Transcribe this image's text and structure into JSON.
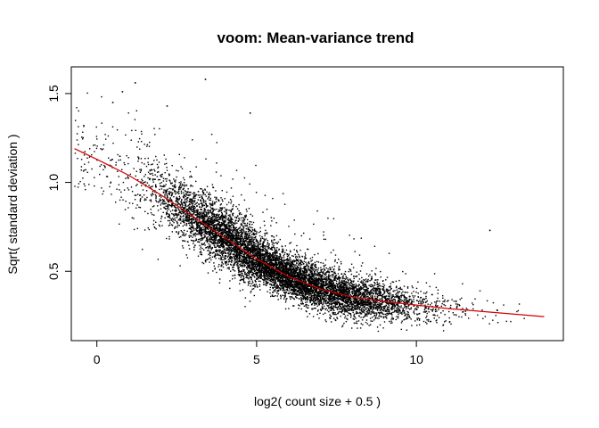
{
  "chart_data": {
    "type": "scatter",
    "title": "voom: Mean-variance trend",
    "xlabel": "log2( count size + 0.5 )",
    "ylabel": "Sqrt( standard deviation )",
    "xlim": [
      -0.8,
      14.6
    ],
    "ylim": [
      0.11,
      1.65
    ],
    "xticks": [
      0,
      5,
      10
    ],
    "xtick_labels": [
      "0",
      "5",
      "10"
    ],
    "yticks": [
      0.5,
      1.0,
      1.5
    ],
    "ytick_labels": [
      "0.5",
      "1.0",
      "1.5"
    ],
    "grid": false,
    "legend": "none",
    "point_color": "#000000",
    "trend_color": "#d40000",
    "approx_point_count": 9000,
    "trend_line": {
      "x": [
        -0.7,
        0.0,
        1.0,
        2.0,
        3.0,
        4.0,
        5.0,
        6.0,
        7.0,
        8.0,
        9.0,
        10.0,
        11.0,
        12.0,
        13.0,
        14.0
      ],
      "y": [
        1.19,
        1.13,
        1.04,
        0.93,
        0.81,
        0.69,
        0.57,
        0.47,
        0.4,
        0.355,
        0.33,
        0.31,
        0.29,
        0.275,
        0.26,
        0.245
      ]
    },
    "density_profile": {
      "x": [
        -0.7,
        0.0,
        1.0,
        2.0,
        3.0,
        4.0,
        5.0,
        6.0,
        7.0,
        8.0,
        9.0,
        10.0,
        11.0,
        12.0,
        13.0,
        14.0
      ],
      "relative_density": [
        0.03,
        0.04,
        0.06,
        0.18,
        0.55,
        0.85,
        1.0,
        0.95,
        0.8,
        0.6,
        0.35,
        0.12,
        0.04,
        0.015,
        0.008,
        0.004
      ]
    },
    "outliers": [
      {
        "x": 3.4,
        "y": 1.58
      },
      {
        "x": 1.2,
        "y": 1.56
      },
      {
        "x": 0.8,
        "y": 1.51
      },
      {
        "x": 2.2,
        "y": 1.43
      },
      {
        "x": 4.8,
        "y": 1.39
      },
      {
        "x": 0.5,
        "y": 1.45
      },
      {
        "x": 12.3,
        "y": 0.73
      }
    ]
  }
}
